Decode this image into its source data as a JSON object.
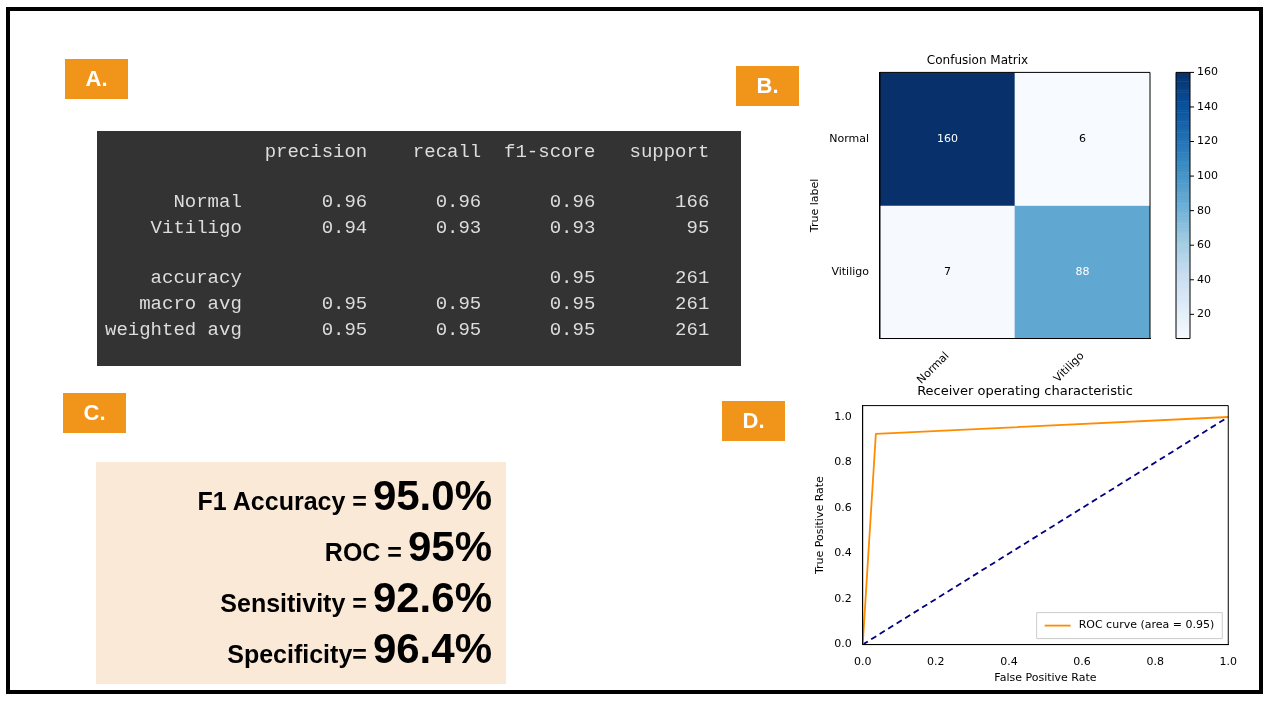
{
  "chart_data": [
    {
      "type": "other",
      "title": "A.",
      "annotations": [
        "              precision    recall  f1-score   support",
        "      Normal       0.96      0.96      0.96       166",
        "    Vitiligo       0.94      0.93      0.93        95",
        "    accuracy                           0.95       261",
        "   macro avg       0.95      0.95      0.95       261",
        "weighted avg       0.95      0.95      0.95       261"
      ]
    },
    {
      "type": "heatmap",
      "title": "Confusion Matrix",
      "ylabel": "True label",
      "annotations": [
        "B."
      ],
      "categories": [
        "Normal",
        "Vitiligo"
      ],
      "y_categories": [
        "Normal",
        "Vitiligo"
      ],
      "cells": [
        [
          160,
          6
        ],
        [
          7,
          88
        ]
      ],
      "data_labels": true,
      "clim": [
        6,
        160
      ],
      "cticks": [
        20,
        40,
        60,
        80,
        100,
        120,
        140,
        160
      ]
    },
    {
      "type": "other",
      "title": "C.",
      "annotations": [
        "F1 Accuracy =",
        "95.0%",
        "ROC =",
        "95%",
        "Sensitivity =",
        "92.6%",
        "Specificity=",
        "96.4%"
      ]
    },
    {
      "type": "line",
      "title": "Receiver operating characteristic",
      "xlabel": "False Positive Rate",
      "ylabel": "True Positive Rate",
      "annotations": [
        "D."
      ],
      "legend": "bottom right",
      "grid": false,
      "xlim": [
        0,
        1
      ],
      "ylim": [
        0,
        1.05
      ],
      "xticks": [
        {
          "value": 0,
          "label": "0.0"
        },
        {
          "value": 0.2,
          "label": "0.2"
        },
        {
          "value": 0.4,
          "label": "0.4"
        },
        {
          "value": 0.6,
          "label": "0.6"
        },
        {
          "value": 0.8,
          "label": "0.8"
        },
        {
          "value": 1,
          "label": "1.0"
        }
      ],
      "yticks": [
        {
          "value": 0,
          "label": "0.0"
        },
        {
          "value": 0.2,
          "label": "0.2"
        },
        {
          "value": 0.4,
          "label": "0.4"
        },
        {
          "value": 0.6,
          "label": "0.6"
        },
        {
          "value": 0.8,
          "label": "0.8"
        },
        {
          "value": 1,
          "label": "1.0"
        }
      ],
      "series": [
        {
          "name": "ROC curve (area = 0.95)",
          "color": "#ff8c00",
          "x": [
            0,
            0.036,
            1
          ],
          "values": [
            0,
            0.926,
            1
          ]
        },
        {
          "color": "#000080",
          "line_style": "dashed",
          "x": [
            0,
            1
          ],
          "values": [
            0,
            1
          ]
        }
      ]
    }
  ]
}
